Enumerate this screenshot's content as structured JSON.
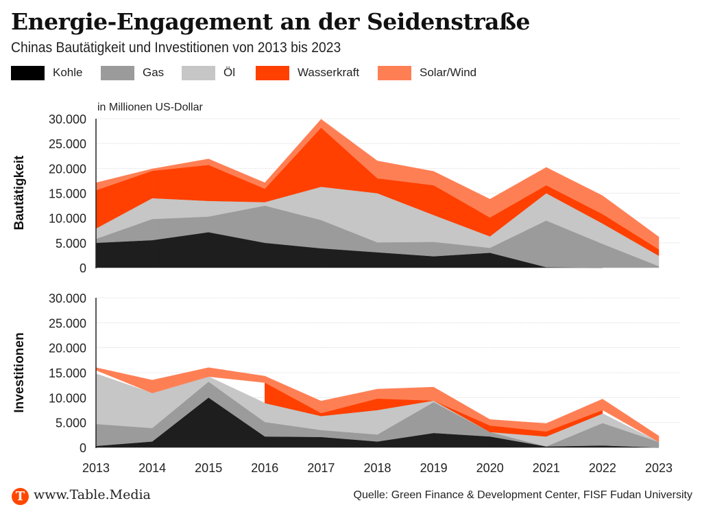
{
  "header": {
    "title": "Energie-Engagement an der Seidenstraße",
    "subtitle": "Chinas Bautätigkeit und Investitionen von 2013 bis 2023"
  },
  "legend": [
    {
      "label": "Kohle",
      "color": "#000000"
    },
    {
      "label": "Gas",
      "color": "#9b9b9b"
    },
    {
      "label": "Öl",
      "color": "#c6c6c6"
    },
    {
      "label": "Wasserkraft",
      "color": "#ff4000"
    },
    {
      "label": "Solar/Wind",
      "color": "#ff7f55"
    }
  ],
  "footer": {
    "logo_letter": "T",
    "url": "www.Table.Media",
    "source": "Quelle: Green Finance & Development Center, FISF Fudan University"
  },
  "chart_data": [
    {
      "type": "area",
      "stacked": true,
      "title": "Bautätigkeit",
      "ylabel": "Bautätigkeit",
      "unit_note": "in Millionen US-Dollar",
      "xlabel": "",
      "ylim": [
        0,
        30000
      ],
      "yticks": [
        "0",
        "5.000",
        "10.000",
        "15.000",
        "20.000",
        "25.000",
        "30.000"
      ],
      "ytick_values": [
        0,
        5000,
        10000,
        15000,
        20000,
        25000,
        30000
      ],
      "grid": true,
      "categories": [
        "2013",
        "2014",
        "2015",
        "2016",
        "2017",
        "2018",
        "2019",
        "2020",
        "2021",
        "2022",
        "2023"
      ],
      "series": [
        {
          "name": "Kohle",
          "color": "#1e1e1e",
          "values": [
            5000,
            5550,
            7150,
            5000,
            3900,
            3100,
            2300,
            3000,
            100,
            0,
            0
          ]
        },
        {
          "name": "Gas",
          "color": "#9b9b9b",
          "values": [
            800,
            4250,
            3150,
            7500,
            5700,
            2000,
            2900,
            1000,
            9400,
            4800,
            300
          ]
        },
        {
          "name": "Öl",
          "color": "#c6c6c6",
          "values": [
            2100,
            4200,
            3150,
            700,
            6700,
            9900,
            5400,
            2300,
            5500,
            4100,
            2100
          ]
        },
        {
          "name": "Wasserkraft",
          "color": "#ff4000",
          "values": [
            7700,
            5500,
            7250,
            2700,
            11900,
            3000,
            6000,
            3800,
            1600,
            1900,
            1300
          ]
        },
        {
          "name": "Solar/Wind",
          "color": "#ff7f55",
          "values": [
            1500,
            400,
            1200,
            1200,
            1700,
            3500,
            2800,
            3700,
            3600,
            3700,
            2500
          ]
        }
      ]
    },
    {
      "type": "area",
      "stacked": true,
      "title": "Investitionen",
      "ylabel": "Investitionen",
      "xlabel": "",
      "ylim": [
        0,
        30000
      ],
      "yticks": [
        "0",
        "5.000",
        "10.000",
        "15.000",
        "20.000",
        "25.000",
        "30.000"
      ],
      "ytick_values": [
        0,
        5000,
        10000,
        15000,
        20000,
        25000,
        30000
      ],
      "grid": true,
      "categories": [
        "2013",
        "2014",
        "2015",
        "2016",
        "2017",
        "2018",
        "2019",
        "2020",
        "2021",
        "2022",
        "2023"
      ],
      "series": [
        {
          "name": "Kohle",
          "color": "#1e1e1e",
          "values": [
            300,
            1200,
            10000,
            2200,
            2100,
            1200,
            2900,
            2200,
            200,
            400,
            0
          ]
        },
        {
          "name": "Gas",
          "color": "#9b9b9b",
          "values": [
            4400,
            2700,
            3200,
            2900,
            1400,
            1400,
            6200,
            900,
            0,
            4500,
            1100
          ]
        },
        {
          "name": "Öl",
          "color": "#c6c6c6",
          "values": [
            10100,
            7000,
            1000,
            3800,
            2800,
            4900,
            300,
            0,
            2000,
            1900,
            0
          ]
        },
        {
          "name": "Wasserkraft",
          "color": "#ff4000",
          "values": [
            700,
            null,
            null,
            4100,
            600,
            2300,
            0,
            1300,
            1000,
            700,
            null
          ]
        },
        {
          "name": "Solar/Wind",
          "color": "#ff7f55",
          "values": [
            500,
            2600,
            1800,
            1300,
            2400,
            1900,
            2700,
            1200,
            1600,
            2200,
            1200
          ]
        }
      ]
    }
  ]
}
